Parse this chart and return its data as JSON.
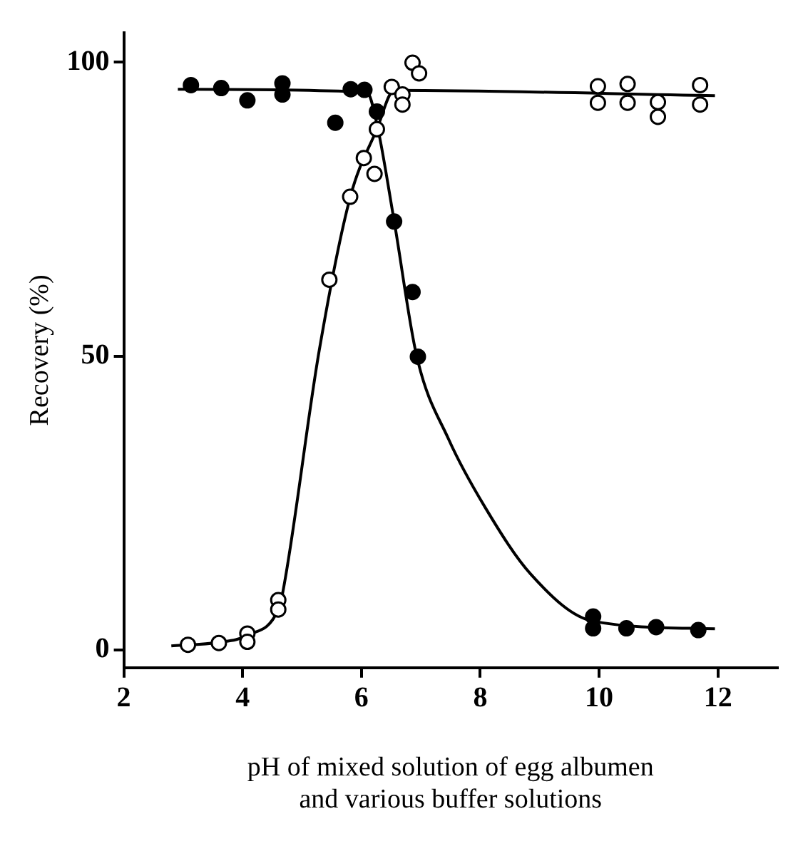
{
  "chart_data": {
    "type": "scatter",
    "xlabel": "pH of mixed solution of egg albumen\nand various buffer solutions",
    "ylabel": "Recovery (%)",
    "xlim": [
      2,
      13
    ],
    "ylim": [
      -3,
      105
    ],
    "xticks": [
      2,
      4,
      6,
      8,
      10,
      12
    ],
    "yticks": [
      0,
      50,
      100
    ],
    "grid": false,
    "legend": false,
    "marker": "circle",
    "series": [
      {
        "color": "#000000",
        "x": [
          3.13,
          3.64,
          4.08,
          4.67,
          4.67,
          5.56,
          5.82,
          6.05,
          6.26,
          6.55,
          6.86,
          6.95,
          9.9,
          9.9,
          10.46,
          10.96,
          11.67
        ],
        "values": [
          96.1,
          95.6,
          93.5,
          96.4,
          94.5,
          89.7,
          95.4,
          95.3,
          91.6,
          72.9,
          60.9,
          49.9,
          5.7,
          3.7,
          3.7,
          3.9,
          3.4
        ]
      },
      {
        "color": "#ffffff",
        "x": [
          3.08,
          3.6,
          4.08,
          4.08,
          4.6,
          4.6,
          5.46,
          5.81,
          6.04,
          6.22,
          6.26,
          6.51,
          6.69,
          6.69,
          6.86,
          6.97,
          9.98,
          9.98,
          10.48,
          10.48,
          10.99,
          10.99,
          11.7,
          11.7
        ],
        "values": [
          0.9,
          1.2,
          2.8,
          1.4,
          8.5,
          6.9,
          63.0,
          77.1,
          83.7,
          81.0,
          88.6,
          95.8,
          94.5,
          92.8,
          99.9,
          98.1,
          95.9,
          93.1,
          96.3,
          93.1,
          93.2,
          90.7,
          96.1,
          92.8
        ]
      },
      {
        "type": "line",
        "color": "#000000",
        "marker": "none",
        "x": [
          2.91,
          6.09,
          6.26,
          6.55,
          6.93,
          7.47,
          8.08,
          8.85,
          9.9,
          11.95
        ],
        "values": [
          95.4,
          94.9,
          89.5,
          73,
          50,
          35.8,
          24.3,
          12.9,
          4.9,
          3.6
        ]
      },
      {
        "type": "line",
        "color": "#000000",
        "marker": "none",
        "x": [
          2.8,
          3.6,
          4.08,
          4.6,
          4.67,
          5.29,
          5.81,
          6.26,
          6.55,
          11.95
        ],
        "values": [
          0.7,
          1.3,
          2.5,
          6.9,
          9.5,
          51,
          77,
          88.6,
          95.2,
          94.3
        ]
      }
    ]
  }
}
